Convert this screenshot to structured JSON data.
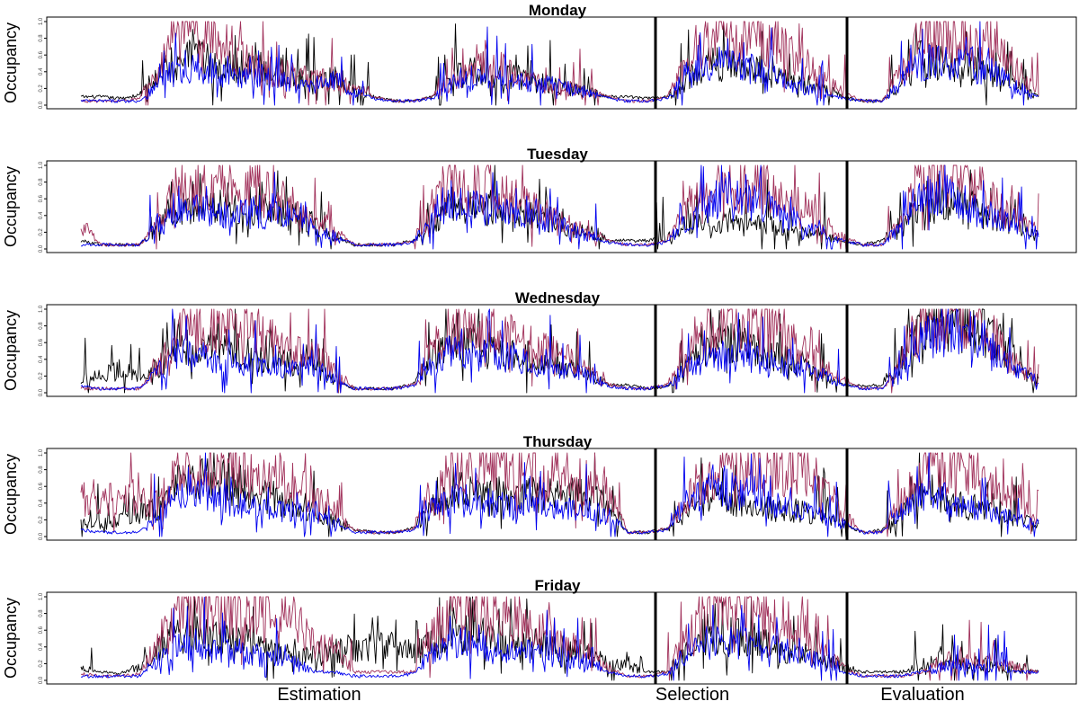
{
  "figure": {
    "ylabel": "Occupancy",
    "section_labels": [
      "Estimation",
      "Selection",
      "Evaluation"
    ],
    "colors": {
      "black_series": "#000000",
      "maroon_series": "#A0305A",
      "blue_series": "#0000EE",
      "divider": "#000000",
      "frame": "#000000"
    }
  },
  "chart_data": [
    {
      "type": "line",
      "title": "Monday",
      "xlabel": "",
      "ylabel": "Occupancy",
      "ylim": [
        0,
        1
      ],
      "yticks": [
        "0.0",
        "0.2",
        "0.4",
        "0.6",
        "0.8",
        "1.0"
      ],
      "xlim": [
        0,
        5
      ],
      "x_unit": "day",
      "dividers": [
        3,
        4
      ],
      "grid": false,
      "series": [
        {
          "color": "#000000",
          "profile": [
            0.1,
            0.1,
            0.08,
            0.12,
            0.4,
            0.55,
            0.55,
            0.5,
            0.45,
            0.45,
            0.4,
            0.3,
            0.3,
            0.35,
            0.2,
            0.1,
            0.05,
            0.05,
            0.1,
            0.35,
            0.4,
            0.4,
            0.35,
            0.3,
            0.25,
            0.2,
            0.15,
            0.1,
            0.1,
            0.08,
            0.1,
            0.3,
            0.5,
            0.5,
            0.45,
            0.4,
            0.3,
            0.25,
            0.2,
            0.1,
            0.05,
            0.05,
            0.25,
            0.55,
            0.5,
            0.45,
            0.4,
            0.3,
            0.2,
            0.1
          ]
        },
        {
          "color": "#A0305A",
          "profile": [
            0.05,
            0.05,
            0.05,
            0.08,
            0.4,
            0.85,
            0.85,
            0.85,
            0.6,
            0.5,
            0.4,
            0.35,
            0.3,
            0.3,
            0.2,
            0.1,
            0.05,
            0.05,
            0.1,
            0.3,
            0.45,
            0.5,
            0.4,
            0.3,
            0.2,
            0.2,
            0.15,
            0.1,
            0.05,
            0.05,
            0.1,
            0.5,
            0.85,
            0.85,
            0.8,
            0.75,
            0.65,
            0.5,
            0.3,
            0.15,
            0.05,
            0.05,
            0.4,
            0.85,
            0.85,
            0.8,
            0.75,
            0.7,
            0.4,
            0.15
          ]
        },
        {
          "color": "#0000EE",
          "profile": [
            0.05,
            0.05,
            0.05,
            0.05,
            0.25,
            0.45,
            0.45,
            0.4,
            0.35,
            0.35,
            0.3,
            0.25,
            0.25,
            0.3,
            0.15,
            0.08,
            0.05,
            0.05,
            0.08,
            0.25,
            0.3,
            0.35,
            0.3,
            0.25,
            0.25,
            0.2,
            0.15,
            0.08,
            0.05,
            0.05,
            0.08,
            0.35,
            0.45,
            0.45,
            0.45,
            0.4,
            0.3,
            0.2,
            0.15,
            0.08,
            0.05,
            0.05,
            0.3,
            0.5,
            0.5,
            0.5,
            0.45,
            0.35,
            0.2,
            0.1
          ]
        }
      ]
    },
    {
      "type": "line",
      "title": "Tuesday",
      "xlabel": "",
      "ylabel": "Occupancy",
      "ylim": [
        0,
        1
      ],
      "yticks": [
        "0.0",
        "0.2",
        "0.4",
        "0.6",
        "0.8",
        "1.0"
      ],
      "xlim": [
        0,
        5
      ],
      "x_unit": "day",
      "dividers": [
        3,
        4
      ],
      "grid": false,
      "series": [
        {
          "color": "#000000",
          "profile": [
            0.1,
            0.05,
            0.05,
            0.05,
            0.3,
            0.5,
            0.5,
            0.5,
            0.45,
            0.5,
            0.45,
            0.4,
            0.3,
            0.15,
            0.05,
            0.05,
            0.05,
            0.1,
            0.3,
            0.55,
            0.55,
            0.5,
            0.45,
            0.4,
            0.35,
            0.25,
            0.2,
            0.1,
            0.1,
            0.1,
            0.15,
            0.3,
            0.3,
            0.35,
            0.3,
            0.3,
            0.25,
            0.2,
            0.15,
            0.1,
            0.05,
            0.1,
            0.3,
            0.55,
            0.6,
            0.55,
            0.45,
            0.35,
            0.25,
            0.15
          ]
        },
        {
          "color": "#A0305A",
          "profile": [
            0.3,
            0.05,
            0.05,
            0.05,
            0.3,
            0.75,
            0.75,
            0.75,
            0.7,
            0.7,
            0.6,
            0.5,
            0.4,
            0.2,
            0.05,
            0.05,
            0.05,
            0.1,
            0.45,
            0.8,
            0.75,
            0.7,
            0.6,
            0.5,
            0.4,
            0.3,
            0.2,
            0.1,
            0.05,
            0.05,
            0.1,
            0.5,
            0.75,
            0.8,
            0.75,
            0.7,
            0.6,
            0.5,
            0.3,
            0.15,
            0.05,
            0.05,
            0.4,
            0.85,
            0.85,
            0.8,
            0.7,
            0.5,
            0.35,
            0.2
          ]
        },
        {
          "color": "#0000EE",
          "profile": [
            0.05,
            0.05,
            0.05,
            0.05,
            0.3,
            0.45,
            0.45,
            0.45,
            0.4,
            0.45,
            0.4,
            0.35,
            0.25,
            0.15,
            0.05,
            0.05,
            0.05,
            0.08,
            0.35,
            0.55,
            0.5,
            0.45,
            0.4,
            0.4,
            0.35,
            0.25,
            0.15,
            0.08,
            0.05,
            0.05,
            0.08,
            0.35,
            0.55,
            0.6,
            0.55,
            0.5,
            0.4,
            0.3,
            0.2,
            0.1,
            0.05,
            0.05,
            0.3,
            0.6,
            0.6,
            0.55,
            0.45,
            0.35,
            0.25,
            0.15
          ]
        }
      ]
    },
    {
      "type": "line",
      "title": "Wednesday",
      "xlabel": "",
      "ylabel": "Occupancy",
      "ylim": [
        0,
        1
      ],
      "yticks": [
        "0.0",
        "0.2",
        "0.4",
        "0.6",
        "0.8",
        "1.0"
      ],
      "xlim": [
        0,
        5
      ],
      "x_unit": "day",
      "dividers": [
        3,
        4
      ],
      "grid": false,
      "series": [
        {
          "color": "#000000",
          "profile": [
            0.15,
            0.2,
            0.3,
            0.2,
            0.3,
            0.6,
            0.55,
            0.55,
            0.5,
            0.45,
            0.4,
            0.35,
            0.3,
            0.15,
            0.05,
            0.05,
            0.05,
            0.1,
            0.4,
            0.6,
            0.55,
            0.5,
            0.45,
            0.4,
            0.35,
            0.3,
            0.2,
            0.1,
            0.1,
            0.05,
            0.08,
            0.3,
            0.55,
            0.6,
            0.6,
            0.5,
            0.4,
            0.3,
            0.2,
            0.1,
            0.08,
            0.1,
            0.4,
            0.8,
            0.85,
            0.85,
            0.8,
            0.6,
            0.3,
            0.15
          ]
        },
        {
          "color": "#A0305A",
          "profile": [
            0.05,
            0.05,
            0.05,
            0.05,
            0.3,
            0.8,
            0.8,
            0.8,
            0.75,
            0.7,
            0.6,
            0.5,
            0.5,
            0.25,
            0.05,
            0.05,
            0.05,
            0.1,
            0.5,
            0.8,
            0.75,
            0.7,
            0.65,
            0.6,
            0.5,
            0.4,
            0.25,
            0.1,
            0.05,
            0.05,
            0.1,
            0.4,
            0.75,
            0.8,
            0.8,
            0.75,
            0.65,
            0.5,
            0.3,
            0.15,
            0.05,
            0.05,
            0.4,
            0.85,
            0.85,
            0.85,
            0.8,
            0.6,
            0.3,
            0.15
          ]
        },
        {
          "color": "#0000EE",
          "profile": [
            0.08,
            0.05,
            0.05,
            0.05,
            0.25,
            0.45,
            0.45,
            0.4,
            0.35,
            0.35,
            0.3,
            0.3,
            0.3,
            0.15,
            0.05,
            0.05,
            0.05,
            0.08,
            0.35,
            0.5,
            0.45,
            0.45,
            0.4,
            0.35,
            0.3,
            0.25,
            0.2,
            0.08,
            0.05,
            0.05,
            0.08,
            0.3,
            0.4,
            0.45,
            0.45,
            0.4,
            0.35,
            0.3,
            0.2,
            0.1,
            0.05,
            0.05,
            0.3,
            0.7,
            0.75,
            0.75,
            0.6,
            0.4,
            0.25,
            0.15
          ]
        }
      ]
    },
    {
      "type": "line",
      "title": "Thursday",
      "xlabel": "",
      "ylabel": "Occupancy",
      "ylim": [
        0,
        1
      ],
      "yticks": [
        "0.0",
        "0.2",
        "0.4",
        "0.6",
        "0.8",
        "1.0"
      ],
      "xlim": [
        0,
        5
      ],
      "x_unit": "day",
      "dividers": [
        3,
        4
      ],
      "grid": false,
      "series": [
        {
          "color": "#000000",
          "profile": [
            0.15,
            0.15,
            0.2,
            0.25,
            0.35,
            0.6,
            0.65,
            0.65,
            0.6,
            0.55,
            0.45,
            0.35,
            0.3,
            0.2,
            0.08,
            0.05,
            0.05,
            0.1,
            0.35,
            0.55,
            0.55,
            0.5,
            0.5,
            0.5,
            0.5,
            0.5,
            0.5,
            0.4,
            0.05,
            0.05,
            0.1,
            0.3,
            0.45,
            0.45,
            0.4,
            0.35,
            0.3,
            0.3,
            0.25,
            0.15,
            0.05,
            0.08,
            0.3,
            0.5,
            0.45,
            0.4,
            0.35,
            0.25,
            0.2,
            0.15
          ]
        },
        {
          "color": "#A0305A",
          "profile": [
            0.45,
            0.45,
            0.45,
            0.45,
            0.4,
            0.8,
            0.85,
            0.85,
            0.85,
            0.75,
            0.7,
            0.6,
            0.45,
            0.25,
            0.08,
            0.05,
            0.05,
            0.1,
            0.5,
            0.85,
            0.85,
            0.85,
            0.8,
            0.75,
            0.75,
            0.7,
            0.65,
            0.5,
            0.05,
            0.05,
            0.1,
            0.45,
            0.75,
            0.8,
            0.8,
            0.75,
            0.8,
            0.75,
            0.6,
            0.3,
            0.05,
            0.05,
            0.45,
            0.85,
            0.85,
            0.8,
            0.7,
            0.6,
            0.45,
            0.2
          ]
        },
        {
          "color": "#0000EE",
          "profile": [
            0.08,
            0.05,
            0.05,
            0.05,
            0.25,
            0.45,
            0.5,
            0.45,
            0.4,
            0.35,
            0.3,
            0.3,
            0.3,
            0.15,
            0.05,
            0.05,
            0.05,
            0.08,
            0.35,
            0.45,
            0.4,
            0.4,
            0.35,
            0.35,
            0.35,
            0.35,
            0.3,
            0.25,
            0.05,
            0.05,
            0.08,
            0.4,
            0.6,
            0.6,
            0.55,
            0.4,
            0.35,
            0.3,
            0.25,
            0.15,
            0.05,
            0.05,
            0.3,
            0.5,
            0.45,
            0.4,
            0.3,
            0.25,
            0.2,
            0.15
          ]
        }
      ]
    },
    {
      "type": "line",
      "title": "Friday",
      "xlabel": "",
      "ylabel": "Occupancy",
      "ylim": [
        0,
        1
      ],
      "yticks": [
        "0.0",
        "0.2",
        "0.4",
        "0.6",
        "0.8",
        "1.0"
      ],
      "xlim": [
        0,
        5
      ],
      "x_unit": "day",
      "dividers": [
        3,
        4
      ],
      "grid": false,
      "series": [
        {
          "color": "#000000",
          "profile": [
            0.15,
            0.1,
            0.08,
            0.15,
            0.4,
            0.55,
            0.55,
            0.5,
            0.45,
            0.4,
            0.35,
            0.3,
            0.3,
            0.35,
            0.4,
            0.4,
            0.4,
            0.35,
            0.45,
            0.55,
            0.55,
            0.5,
            0.5,
            0.45,
            0.4,
            0.35,
            0.3,
            0.2,
            0.2,
            0.1,
            0.1,
            0.35,
            0.55,
            0.55,
            0.5,
            0.45,
            0.35,
            0.3,
            0.25,
            0.15,
            0.1,
            0.1,
            0.1,
            0.15,
            0.25,
            0.25,
            0.2,
            0.15,
            0.15,
            0.1
          ]
        },
        {
          "color": "#A0305A",
          "profile": [
            0.08,
            0.05,
            0.05,
            0.08,
            0.45,
            0.9,
            0.9,
            0.9,
            0.85,
            0.8,
            0.75,
            0.7,
            0.4,
            0.4,
            0.1,
            0.1,
            0.1,
            0.1,
            0.55,
            0.85,
            0.85,
            0.8,
            0.75,
            0.65,
            0.55,
            0.45,
            0.3,
            0.15,
            0.05,
            0.05,
            0.1,
            0.5,
            0.85,
            0.85,
            0.8,
            0.75,
            0.7,
            0.6,
            0.35,
            0.15,
            0.05,
            0.05,
            0.05,
            0.1,
            0.2,
            0.3,
            0.25,
            0.2,
            0.15,
            0.1
          ]
        },
        {
          "color": "#0000EE",
          "profile": [
            0.05,
            0.05,
            0.05,
            0.05,
            0.25,
            0.4,
            0.4,
            0.35,
            0.35,
            0.3,
            0.25,
            0.2,
            0.1,
            0.1,
            0.05,
            0.05,
            0.05,
            0.08,
            0.35,
            0.45,
            0.45,
            0.4,
            0.35,
            0.35,
            0.3,
            0.25,
            0.2,
            0.1,
            0.05,
            0.05,
            0.08,
            0.35,
            0.45,
            0.45,
            0.45,
            0.4,
            0.35,
            0.3,
            0.2,
            0.1,
            0.05,
            0.05,
            0.05,
            0.1,
            0.15,
            0.2,
            0.15,
            0.15,
            0.1,
            0.1
          ]
        }
      ]
    }
  ]
}
